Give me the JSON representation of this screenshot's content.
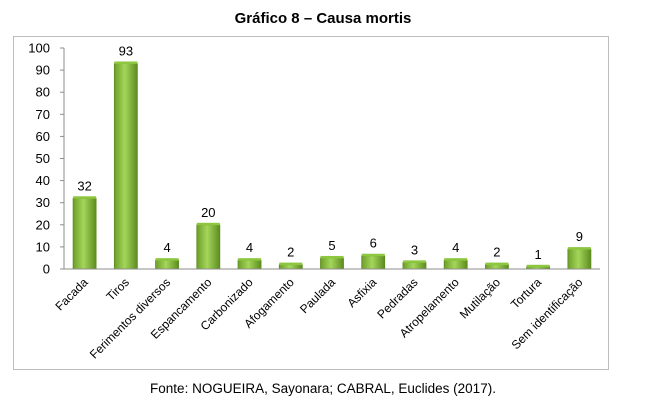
{
  "chart_data": {
    "type": "bar",
    "title": "Gráfico 8 – Causa mortis",
    "categories": [
      "Facada",
      "Tiros",
      "Ferimentos diversos",
      "Espancamento",
      "Carbonizado",
      "Afogamento",
      "Paulada",
      "Asfixia",
      "Pedradas",
      "Atropelamento",
      "Mutilação",
      "Tortura",
      "Sem identificação"
    ],
    "values": [
      32,
      93,
      4,
      20,
      4,
      2,
      5,
      6,
      3,
      4,
      2,
      1,
      9
    ],
    "yticks": [
      "0",
      "10",
      "20",
      "30",
      "40",
      "50",
      "60",
      "70",
      "80",
      "90",
      "100"
    ],
    "ylim": [
      0,
      100
    ],
    "grid": false,
    "legend": "none",
    "bar_color": "#8dc63f",
    "bar_color_dark": "#5c8a1f"
  },
  "source": "Fonte: NOGUEIRA, Sayonara; CABRAL, Euclides (2017)."
}
